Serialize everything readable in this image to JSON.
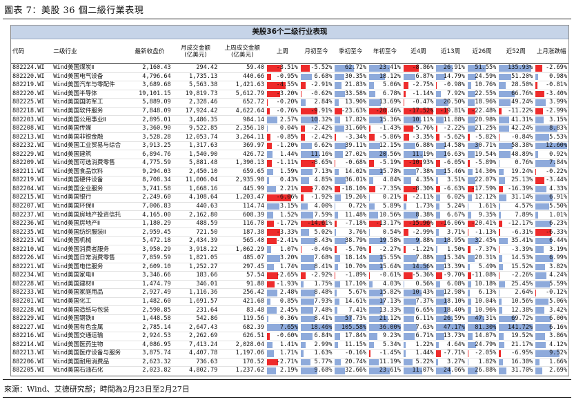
{
  "figure": {
    "title": "圖表 7：美股 36 個二級行業表現",
    "table_title": "美股36个二级行业表现",
    "source": "來源：Wind、艾德研究部；時間為2月23日至2月27日"
  },
  "colors": {
    "positive_bar": "#8eaadb",
    "negative_bar": "#ee2b2b",
    "banner": "#c6d4e8"
  },
  "columns": [
    {
      "key": "code",
      "label": "代码"
    },
    {
      "key": "name",
      "label": "二级行业"
    },
    {
      "key": "close",
      "label": "最新收盘价"
    },
    {
      "key": "mtd_amt",
      "label": "月成交金额\n(亿美元)"
    },
    {
      "key": "lw_amt",
      "label": "上周成交金额\n(亿美元)"
    },
    {
      "key": "lw",
      "label": "上周"
    },
    {
      "key": "mtd",
      "label": "月初至今"
    },
    {
      "key": "qtd",
      "label": "季初至今"
    },
    {
      "key": "ytd",
      "label": "年初至今"
    },
    {
      "key": "w4",
      "label": "近4周"
    },
    {
      "key": "w13",
      "label": "近13周"
    },
    {
      "key": "w26",
      "label": "近26周"
    },
    {
      "key": "w52",
      "label": "近52周"
    },
    {
      "key": "lm",
      "label": "上月涨跌幅"
    }
  ],
  "rows": [
    {
      "code": "882224.WI",
      "name": "Wind美国煤炭Ⅱ",
      "close": "2,160.43",
      "mtd_amt": "294.42",
      "lw_amt": "59.40",
      "lw": -3.51,
      "mtd": -5.52,
      "qtd": 62.72,
      "ytd": 23.41,
      "w4": -8.86,
      "w13": 26.91,
      "w26": 51.55,
      "w52": 135.93,
      "lm": -2.69
    },
    {
      "code": "882220.WI",
      "name": "Wind美国电气设备",
      "close": "4,796.64",
      "mtd_amt": "1,735.13",
      "lw_amt": "440.66",
      "lw": -0.95,
      "mtd": 6.68,
      "qtd": 30.35,
      "ytd": 18.12,
      "w4": 6.87,
      "w13": 14.79,
      "w26": 24.59,
      "w52": 51.2,
      "lm": 0.98
    },
    {
      "code": "882219.WI",
      "name": "Wind美国汽车与零配件",
      "close": "3,689.68",
      "mtd_amt": "5,563.38",
      "lw_amt": "1,421.63",
      "lw": -4.55,
      "mtd": -2.91,
      "qtd": 21.83,
      "ytd": 5.06,
      "w4": -2.75,
      "w13": -0.98,
      "w26": 10.76,
      "w52": 28.5,
      "lm": -0.81
    },
    {
      "code": "882220.WI",
      "name": "Wind美国半导体",
      "close": "19,101.15",
      "mtd_amt": "19,819.73",
      "lw_amt": "5,612.79",
      "lw": -3.2,
      "mtd": -0.62,
      "qtd": 33.58,
      "ytd": 6.78,
      "w4": -1.14,
      "w13": 7.92,
      "w26": 22.55,
      "w52": 66.76,
      "lm": -3.4
    },
    {
      "code": "882225.WI",
      "name": "Wind美国国防军工",
      "close": "5,889.09",
      "mtd_amt": "2,328.46",
      "lw_amt": "652.72",
      "lw": -0.2,
      "mtd": 2.84,
      "qtd": 13.9,
      "ytd": 13.69,
      "w4": -0.47,
      "w13": 20.5,
      "w26": 18.96,
      "w52": 49.24,
      "lm": 3.99
    },
    {
      "code": "882218.WI",
      "name": "Wind美国软件服务",
      "close": "7,848.09",
      "mtd_amt": "17,924.42",
      "lw_amt": "4,622.64",
      "lw": -0.76,
      "mtd": -9.91,
      "qtd": -23.63,
      "ytd": -20.46,
      "w4": -17.52,
      "w13": -19.81,
      "w26": -22.48,
      "w52": -11.22,
      "lm": -2.99
    },
    {
      "code": "882203.WI",
      "name": "Wind美国公用事业Ⅱ",
      "close": "2,895.01",
      "mtd_amt": "3,486.35",
      "lw_amt": "984.14",
      "lw": 2.57,
      "mtd": 10.32,
      "qtd": 17.82,
      "ytd": 15.36,
      "w4": 10.11,
      "w13": 11.88,
      "w26": 20.98,
      "w52": 41.31,
      "lm": 3.15
    },
    {
      "code": "882208.WI",
      "name": "Wind美国传媒",
      "close": "3,360.90",
      "mtd_amt": "9,522.85",
      "lw_amt": "2,356.10",
      "lw": 0.04,
      "mtd": -2.42,
      "qtd": 31.6,
      "ytd": -1.43,
      "w4": -5.76,
      "w13": -2.22,
      "w26": 21.25,
      "w52": 42.24,
      "lm": 8.83
    },
    {
      "code": "882213.WI",
      "name": "Wind美国非银金融",
      "close": "3,528.28",
      "mtd_amt": "12,053.74",
      "lw_amt": "3,264.11",
      "lw": -0.85,
      "mtd": -2.42,
      "qtd": -3.34,
      "ytd": -5.86,
      "w4": -3.35,
      "w13": -5.62,
      "w26": -5.82,
      "w52": -0.84,
      "lm": 5.53
    },
    {
      "code": "882232.WI",
      "name": "Wind美国工业贸易与综合",
      "close": "3,913.25",
      "mtd_amt": "1,317.63",
      "lw_amt": "369.97",
      "lw": -1.2,
      "mtd": 6.62,
      "qtd": 39.11,
      "ytd": 12.15,
      "w4": 6.88,
      "w13": 14.58,
      "w26": 30.71,
      "w52": 58.38,
      "lm": 12.6
    },
    {
      "code": "882229.WI",
      "name": "Wind美国建筑",
      "close": "6,894.76",
      "mtd_amt": "1,540.90",
      "lw_amt": "426.72",
      "lw": 1.44,
      "mtd": 11.16,
      "qtd": 27.02,
      "ytd": 20.56,
      "w4": 11.19,
      "w13": 16.63,
      "w26": 19.54,
      "w52": 48.89,
      "lm": 0.92
    },
    {
      "code": "882209.WI",
      "name": "Wind美国可选消费零售",
      "close": "4,775.59",
      "mtd_amt": "5,881.48",
      "lw_amt": "1,390.13",
      "lw": -1.11,
      "mtd": -8.65,
      "qtd": -0.68,
      "ytd": -5.19,
      "w4": -10.93,
      "w13": -6.05,
      "w26": -5.89,
      "w52": 0.76,
      "lm": 7.84
    },
    {
      "code": "882211.WI",
      "name": "Wind美国食品饮料",
      "close": "9,294.03",
      "mtd_amt": "2,450.10",
      "lw_amt": "659.65",
      "lw": 1.59,
      "mtd": 7.13,
      "qtd": 14.02,
      "ytd": 15.78,
      "w4": 7.38,
      "w13": 15.46,
      "w26": 14.3,
      "w52": 19.24,
      "lm": -0.22
    },
    {
      "code": "882219.WI",
      "name": "Wind美国硬件设备",
      "close": "8,708.34",
      "mtd_amt": "11,006.04",
      "lw_amt": "2,935.90",
      "lw": 0.43,
      "mtd": 4.85,
      "qtd": 36.01,
      "ytd": 4.84,
      "w4": 4.35,
      "w13": 3.51,
      "w26": 22.07,
      "w52": 25.13,
      "lm": -3.44
    },
    {
      "code": "882204.WI",
      "name": "Wind美国企业服务",
      "close": "3,741.58",
      "mtd_amt": "1,668.16",
      "lw_amt": "445.99",
      "lw": 2.21,
      "mtd": -7.02,
      "qtd": -18.1,
      "ytd": -7.35,
      "w4": -8.3,
      "w13": -6.63,
      "w26": -17.59,
      "w52": -16.39,
      "lm": 4.33
    },
    {
      "code": "882215.WI",
      "name": "Wind美国银行",
      "close": "2,249.60",
      "mtd_amt": "4,108.64",
      "lw_amt": "1,203.47",
      "lw": -6.06,
      "mtd": -1.92,
      "qtd": 19.26,
      "ytd": 0.21,
      "w4": -2.11,
      "w13": 6.02,
      "w26": 12.12,
      "w52": 31.14,
      "lm": 6.91
    },
    {
      "code": "882207.WI",
      "name": "Wind美国环保Ⅱ",
      "close": "7,006.83",
      "mtd_amt": "440.63",
      "lw_amt": "114.74",
      "lw": 3.15,
      "mtd": 4.0,
      "qtd": 0.72,
      "ytd": 5.89,
      "w4": 1.73,
      "w13": 5.24,
      "w26": 1.61,
      "w52": 4.57,
      "lm": 5.5
    },
    {
      "code": "882237.WI",
      "name": "Wind美国房地产投资信托",
      "close": "4,165.00",
      "mtd_amt": "2,162.80",
      "lw_amt": "608.39",
      "lw": 1.52,
      "mtd": 7.59,
      "qtd": 11.48,
      "ytd": 10.56,
      "w4": 8.38,
      "w13": 6.67,
      "w26": 9.35,
      "w52": 7.89,
      "lm": 1.01
    },
    {
      "code": "882236.WI",
      "name": "Wind美国房地产Ⅱ",
      "close": "1,180.29",
      "mtd_amt": "488.59",
      "lw_amt": "116.70",
      "lw": -1.72,
      "mtd": -14.61,
      "qtd": -7.18,
      "ytd": -13.17,
      "w4": -15.96,
      "w13": -16.06,
      "w26": -20.41,
      "w52": -12.17,
      "lm": 6.23
    },
    {
      "code": "882235.WI",
      "name": "Wind美国纺织服装Ⅱ",
      "close": "2,959.45",
      "mtd_amt": "721.50",
      "lw_amt": "187.38",
      "lw": -3.33,
      "mtd": 5.02,
      "qtd": 3.76,
      "ytd": 0.54,
      "w4": -2.99,
      "w13": 3.71,
      "w26": -1.13,
      "w52": -6.31,
      "lm": -6.33
    },
    {
      "code": "882223.WI",
      "name": "Wind美国机械",
      "close": "5,472.18",
      "mtd_amt": "2,434.39",
      "lw_amt": "565.40",
      "lw": -2.41,
      "mtd": 8.43,
      "qtd": 38.79,
      "ytd": 19.58,
      "w4": 9.88,
      "w13": 18.95,
      "w26": 32.45,
      "w52": 35.41,
      "lm": 6.44
    },
    {
      "code": "882210.WI",
      "name": "Wind美国消费者服务",
      "close": "3,950.29",
      "mtd_amt": "3,918.22",
      "lw_amt": "1,062.29",
      "lw": 1.07,
      "mtd": -0.46,
      "qtd": -5.7,
      "ytd": -2.27,
      "w4": -1.22,
      "w13": 1.5,
      "w26": -7.37,
      "w52": -3.39,
      "lm": 3.19
    },
    {
      "code": "882226.WI",
      "name": "Wind美国日常消费零售",
      "close": "7,859.59",
      "mtd_amt": "1,821.05",
      "lw_amt": "485.07",
      "lw": 3.2,
      "mtd": 7.68,
      "qtd": 18.14,
      "ytd": 15.55,
      "w4": 7.88,
      "w13": 15.34,
      "w26": 20.31,
      "w52": 14.53,
      "lm": 6.99
    },
    {
      "code": "882221.WI",
      "name": "Wind美国电信服务",
      "close": "2,609.10",
      "mtd_amt": "1,252.27",
      "lw_amt": "297.45",
      "lw": 1.74,
      "mtd": 8.41,
      "qtd": 10.7,
      "ytd": 15.64,
      "w4": 14.56,
      "w13": 13.39,
      "w26": 5.49,
      "w52": 15.52,
      "lm": 3.82
    },
    {
      "code": "882234.WI",
      "name": "Wind美国家电Ⅱ",
      "close": "3,346.66",
      "mtd_amt": "183.66",
      "lw_amt": "57.54",
      "lw": -2.65,
      "mtd": -2.92,
      "qtd": -1.89,
      "ytd": -0.61,
      "w4": -5.36,
      "w13": -9.7,
      "w26": -11.08,
      "w52": -2.26,
      "lm": 4.24
    },
    {
      "code": "882228.WI",
      "name": "Wind美国建材Ⅱ",
      "close": "1,474.79",
      "mtd_amt": "346.01",
      "lw_amt": "91.80",
      "lw": -1.93,
      "mtd": 1.75,
      "qtd": 17.1,
      "ytd": 4.03,
      "w4": 0.56,
      "w13": 6.08,
      "w26": 10.18,
      "w52": 25.45,
      "lm": 5.59
    },
    {
      "code": "882233.WI",
      "name": "Wind美国家庭用品",
      "close": "2,927.49",
      "mtd_amt": "1,116.36",
      "lw_amt": "256.42",
      "lw": 2.48,
      "mtd": 8.48,
      "qtd": 5.67,
      "ytd": 15.82,
      "w4": 10.43,
      "w13": 12.98,
      "w26": 6.13,
      "w52": 2.64,
      "lm": -0.12
    },
    {
      "code": "882201.WI",
      "name": "Wind美国化工",
      "close": "1,482.60",
      "mtd_amt": "1,691.57",
      "lw_amt": "421.68",
      "lw": 0.85,
      "mtd": 7.93,
      "qtd": 14.61,
      "ytd": 17.13,
      "w4": 7.37,
      "w13": 18.1,
      "w26": 10.04,
      "w52": 10.56,
      "lm": 5.06
    },
    {
      "code": "882228.WI",
      "name": "Wind美国造纸与包装",
      "close": "2,590.85",
      "mtd_amt": "231.64",
      "lw_amt": "83.48",
      "lw": 2.45,
      "mtd": 7.48,
      "qtd": 7.41,
      "ytd": 13.33,
      "w4": 6.65,
      "w13": 18.4,
      "w26": 10.96,
      "w52": 12.38,
      "lm": 3.42
    },
    {
      "code": "882229.WI",
      "name": "Wind美国钢铁Ⅱ",
      "close": "1,448.58",
      "mtd_amt": "542.86",
      "lw_amt": "119.56",
      "lw": 0.36,
      "mtd": 8.41,
      "qtd": 57.73,
      "ytd": 21.12,
      "w4": 6.11,
      "w13": 26.59,
      "w26": 47.31,
      "w52": 69.72,
      "lm": 6.0
    },
    {
      "code": "882227.WI",
      "name": "Wind美国有色金属",
      "close": "2,785.14",
      "mtd_amt": "2,647.43",
      "lw_amt": "682.39",
      "lw": 7.65,
      "mtd": 18.46,
      "qtd": 105.58,
      "ytd": 36.0,
      "w4": 7.63,
      "w13": 47.17,
      "w26": 81.3,
      "w52": 141.72,
      "lm": 6.16
    },
    {
      "code": "882216.WI",
      "name": "Wind美国交通运输",
      "close": "2,924.53",
      "mtd_amt": "2,262.69",
      "lw_amt": "626.51",
      "lw": -0.6,
      "mtd": 6.84,
      "qtd": 17.84,
      "ytd": 9.23,
      "w4": 6.71,
      "w13": 13.73,
      "w26": 14.87,
      "w52": 19.52,
      "lm": 3.86
    },
    {
      "code": "882214.WI",
      "name": "Wind美国医药生物",
      "close": "4,086.95",
      "mtd_amt": "7,413.24",
      "lw_amt": "2,028.04",
      "lw": 1.41,
      "mtd": 2.99,
      "qtd": 11.15,
      "ytd": 5.34,
      "w4": 1.22,
      "w13": 4.64,
      "w26": 24.79,
      "w52": 21.17,
      "lm": 4.12
    },
    {
      "code": "882213.WI",
      "name": "Wind美国医疗设备与服务",
      "close": "3,875.74",
      "mtd_amt": "4,407.78",
      "lw_amt": "1,197.06",
      "lw": 1.71,
      "mtd": 1.63,
      "qtd": -0.16,
      "ytd": -1.45,
      "w4": 1.44,
      "w13": -7.71,
      "w26": -2.05,
      "w52": -6.95,
      "lm": 9.52
    },
    {
      "code": "882206.WI",
      "name": "Wind美国耐用消费品",
      "close": "2,623.32",
      "mtd_amt": "736.63",
      "lw_amt": "170.52",
      "lw": -2.71,
      "mtd": 5.77,
      "qtd": 20.74,
      "ytd": 11.19,
      "w4": 5.22,
      "w13": 3.27,
      "w26": 1.82,
      "w52": 16.3,
      "lm": 1.66
    },
    {
      "code": "882205.WI",
      "name": "Wind美国石油石化",
      "close": "2,023.82",
      "mtd_amt": "4,802.79",
      "lw_amt": "1,237.62",
      "lw": 2.19,
      "mtd": 9.68,
      "qtd": 32.66,
      "ytd": 23.61,
      "w4": 11.07,
      "w13": 24.06,
      "w26": 26.88,
      "w52": 31.7,
      "lm": 2.69
    }
  ]
}
